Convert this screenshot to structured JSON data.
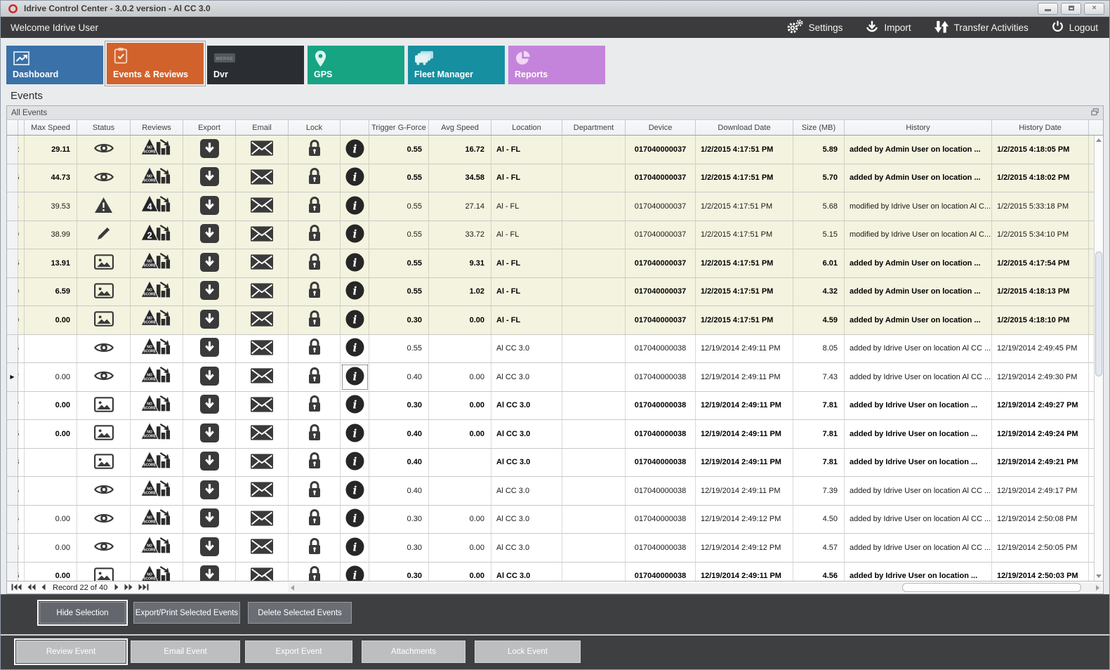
{
  "window": {
    "title": "Idrive Control Center - 3.0.2 version - Al CC 3.0"
  },
  "window_controls": [
    {
      "id": "minimize",
      "icon": "minimize-icon"
    },
    {
      "id": "maximize",
      "icon": "maximize-icon"
    },
    {
      "id": "close",
      "icon": "close-icon",
      "glyph": "×"
    }
  ],
  "menubar": {
    "welcome": "Welcome Idrive User",
    "actions": [
      {
        "id": "settings",
        "label": "Settings",
        "icon": "gears-icon"
      },
      {
        "id": "import",
        "label": "Import",
        "icon": "import-icon"
      },
      {
        "id": "transfer-activities",
        "label": "Transfer Activities",
        "icon": "transfer-icon"
      },
      {
        "id": "logout",
        "label": "Logout",
        "icon": "power-icon"
      }
    ]
  },
  "tabs": [
    {
      "id": "dashboard",
      "label": "Dashboard",
      "color": "#3A71A8",
      "icon": "dashboard-icon",
      "selected": false
    },
    {
      "id": "events-reviews",
      "label": "Events & Reviews",
      "color": "#D2622B",
      "icon": "events-icon",
      "selected": true
    },
    {
      "id": "dvr",
      "label": "Dvr",
      "color": "#2A2E32",
      "icon": "dvr-icon",
      "selected": false
    },
    {
      "id": "gps",
      "label": "GPS",
      "color": "#16A483",
      "icon": "gps-icon",
      "selected": false
    },
    {
      "id": "fleet-manager",
      "label": "Fleet Manager",
      "color": "#168FA0",
      "icon": "fleet-icon",
      "selected": false
    },
    {
      "id": "reports",
      "label": "Reports",
      "color": "#C584DB",
      "icon": "reports-icon",
      "selected": false
    }
  ],
  "page_title": "Events",
  "panel_caption": "All Events",
  "table": {
    "columns": [
      "",
      "",
      "Max Speed",
      "Status",
      "Reviews",
      "Export",
      "Email",
      "Lock",
      "",
      "Trigger G-Force",
      "Avg Speed",
      "Location",
      "Department",
      "Device",
      "Download Date",
      "Size (MB)",
      "History",
      "History Date",
      ""
    ],
    "rows": [
      {
        "id_digit": "2",
        "max_speed": "29.11",
        "status": "eye",
        "review": "NO SCORE",
        "trigger_g_force": "0.55",
        "avg_speed": "16.72",
        "location": "Al - FL",
        "department": "",
        "device": "017040000037",
        "download_date": "1/2/2015 4:17:51 PM",
        "size_mb": "5.89",
        "history": "added by Admin User on location ...",
        "history_date": "1/2/2015 4:18:05 PM",
        "bold": true,
        "shaded": true,
        "current": false
      },
      {
        "id_digit": "5",
        "max_speed": "44.73",
        "status": "eye",
        "review": "NO SCORE",
        "trigger_g_force": "0.55",
        "avg_speed": "34.58",
        "location": "Al - FL",
        "department": "",
        "device": "017040000037",
        "download_date": "1/2/2015 4:17:51 PM",
        "size_mb": "5.70",
        "history": "added by Admin User on location ...",
        "history_date": "1/2/2015 4:18:02 PM",
        "bold": true,
        "shaded": true,
        "current": false
      },
      {
        "id_digit": "4",
        "max_speed": "39.53",
        "status": "warning",
        "review": "4",
        "trigger_g_force": "0.55",
        "avg_speed": "27.14",
        "location": "Al - FL",
        "department": "",
        "device": "017040000037",
        "download_date": "1/2/2015 4:17:51 PM",
        "size_mb": "5.68",
        "history": "modified by Idrive User on location Al C...",
        "history_date": "1/2/2015 5:33:18 PM",
        "bold": false,
        "shaded": true,
        "current": false
      },
      {
        "id_digit": "9",
        "max_speed": "38.99",
        "status": "pencil",
        "review": "2",
        "trigger_g_force": "0.55",
        "avg_speed": "33.72",
        "location": "Al - FL",
        "department": "",
        "device": "017040000037",
        "download_date": "1/2/2015 4:17:51 PM",
        "size_mb": "5.15",
        "history": "modified by Idrive User on location Al C...",
        "history_date": "1/2/2015 5:34:10 PM",
        "bold": false,
        "shaded": true,
        "current": false
      },
      {
        "id_digit": "5",
        "max_speed": "13.91",
        "status": "image",
        "review": "NO SCORE",
        "trigger_g_force": "0.55",
        "avg_speed": "9.31",
        "location": "Al - FL",
        "department": "",
        "device": "017040000037",
        "download_date": "1/2/2015 4:17:51 PM",
        "size_mb": "6.01",
        "history": "added by Admin User on location ...",
        "history_date": "1/2/2015 4:17:54 PM",
        "bold": true,
        "shaded": true,
        "current": false
      },
      {
        "id_digit": "0",
        "max_speed": "6.59",
        "status": "image",
        "review": "NO SCORE",
        "trigger_g_force": "0.55",
        "avg_speed": "1.02",
        "location": "Al - FL",
        "department": "",
        "device": "017040000037",
        "download_date": "1/2/2015 4:17:51 PM",
        "size_mb": "4.32",
        "history": "added by Admin User on location ...",
        "history_date": "1/2/2015 4:18:13 PM",
        "bold": true,
        "shaded": true,
        "current": false
      },
      {
        "id_digit": "0",
        "max_speed": "0.00",
        "status": "image",
        "review": "NO SCORE",
        "trigger_g_force": "0.30",
        "avg_speed": "0.00",
        "location": "Al - FL",
        "department": "",
        "device": "017040000037",
        "download_date": "1/2/2015 4:17:51 PM",
        "size_mb": "4.59",
        "history": "added by Admin User on location ...",
        "history_date": "1/2/2015 4:18:10 PM",
        "bold": true,
        "shaded": true,
        "current": false
      },
      {
        "id_digit": "5",
        "max_speed": "",
        "status": "eye",
        "review": "NO SCORE",
        "trigger_g_force": "0.55",
        "avg_speed": "",
        "location": "Al CC 3.0",
        "department": "",
        "device": "017040000038",
        "download_date": "12/19/2014 2:49:11 PM",
        "size_mb": "8.05",
        "history": "added by Idrive User on location Al CC ...",
        "history_date": "12/19/2014 2:49:45 PM",
        "bold": false,
        "shaded": false,
        "current": false
      },
      {
        "id_digit": "7",
        "max_speed": "0.00",
        "status": "eye",
        "review": "NO SCORE",
        "trigger_g_force": "0.40",
        "avg_speed": "0.00",
        "location": "Al CC 3.0",
        "department": "",
        "device": "017040000038",
        "download_date": "12/19/2014 2:49:11 PM",
        "size_mb": "7.43",
        "history": "added by Idrive User on location Al CC ...",
        "history_date": "12/19/2014 2:49:30 PM",
        "bold": false,
        "shaded": false,
        "current": true
      },
      {
        "id_digit": "7",
        "max_speed": "0.00",
        "status": "image",
        "review": "NO SCORE",
        "trigger_g_force": "0.30",
        "avg_speed": "0.00",
        "location": "Al CC 3.0",
        "department": "",
        "device": "017040000038",
        "download_date": "12/19/2014 2:49:11 PM",
        "size_mb": "7.81",
        "history": "added by Idrive User on location ...",
        "history_date": "12/19/2014 2:49:27 PM",
        "bold": true,
        "shaded": false,
        "current": false
      },
      {
        "id_digit": "6",
        "max_speed": "0.00",
        "status": "image",
        "review": "NO SCORE",
        "trigger_g_force": "0.40",
        "avg_speed": "0.00",
        "location": "Al CC 3.0",
        "department": "",
        "device": "017040000038",
        "download_date": "12/19/2014 2:49:11 PM",
        "size_mb": "7.81",
        "history": "added by Idrive User on location ...",
        "history_date": "12/19/2014 2:49:24 PM",
        "bold": true,
        "shaded": false,
        "current": false
      },
      {
        "id_digit": "8",
        "max_speed": "",
        "status": "image",
        "review": "NO SCORE",
        "trigger_g_force": "0.40",
        "avg_speed": "",
        "location": "Al CC 3.0",
        "department": "",
        "device": "017040000038",
        "download_date": "12/19/2014 2:49:11 PM",
        "size_mb": "7.81",
        "history": "added by Idrive User on location ...",
        "history_date": "12/19/2014 2:49:21 PM",
        "bold": true,
        "shaded": false,
        "current": false
      },
      {
        "id_digit": "5",
        "max_speed": "",
        "status": "eye",
        "review": "NO SCORE",
        "trigger_g_force": "0.40",
        "avg_speed": "",
        "location": "Al CC 3.0",
        "department": "",
        "device": "017040000038",
        "download_date": "12/19/2014 2:49:11 PM",
        "size_mb": "7.39",
        "history": "added by Idrive User on location Al CC ...",
        "history_date": "12/19/2014 2:49:17 PM",
        "bold": false,
        "shaded": false,
        "current": false
      },
      {
        "id_digit": "5",
        "max_speed": "0.00",
        "status": "eye",
        "review": "NO SCORE",
        "trigger_g_force": "0.30",
        "avg_speed": "0.00",
        "location": "Al CC 3.0",
        "department": "",
        "device": "017040000038",
        "download_date": "12/19/2014 2:49:12 PM",
        "size_mb": "4.50",
        "history": "added by Idrive User on location Al CC ...",
        "history_date": "12/19/2014 2:50:08 PM",
        "bold": false,
        "shaded": false,
        "current": false
      },
      {
        "id_digit": "8",
        "max_speed": "0.00",
        "status": "eye",
        "review": "NO SCORE",
        "trigger_g_force": "0.30",
        "avg_speed": "0.00",
        "location": "Al CC 3.0",
        "department": "",
        "device": "017040000038",
        "download_date": "12/19/2014 2:49:12 PM",
        "size_mb": "4.57",
        "history": "added by Idrive User on location Al CC ...",
        "history_date": "12/19/2014 2:50:05 PM",
        "bold": false,
        "shaded": false,
        "current": false
      },
      {
        "id_digit": "5",
        "max_speed": "0.00",
        "status": "image",
        "review": "NO SCORE",
        "trigger_g_force": "0.30",
        "avg_speed": "0.00",
        "location": "Al CC 3.0",
        "department": "",
        "device": "017040000038",
        "download_date": "12/19/2014 2:49:11 PM",
        "size_mb": "4.56",
        "history": "added by Idrive User on location ...",
        "history_date": "12/19/2014 2:50:03 PM",
        "bold": true,
        "shaded": false,
        "current": false
      }
    ]
  },
  "record_nav": {
    "text": "Record 22 of 40"
  },
  "selection_buttons": [
    {
      "label": "Hide Selection",
      "focused": true
    },
    {
      "label": "Export/Print Selected Events",
      "focused": false
    },
    {
      "label": "Delete Selected  Events",
      "focused": false
    }
  ],
  "event_buttons": [
    {
      "label": "Review Event",
      "focused": true
    },
    {
      "label": "Email Event",
      "focused": false
    },
    {
      "label": "Export Event",
      "focused": false
    },
    {
      "label": "Attachments",
      "focused": false
    },
    {
      "label": "Lock Event",
      "focused": false
    }
  ]
}
